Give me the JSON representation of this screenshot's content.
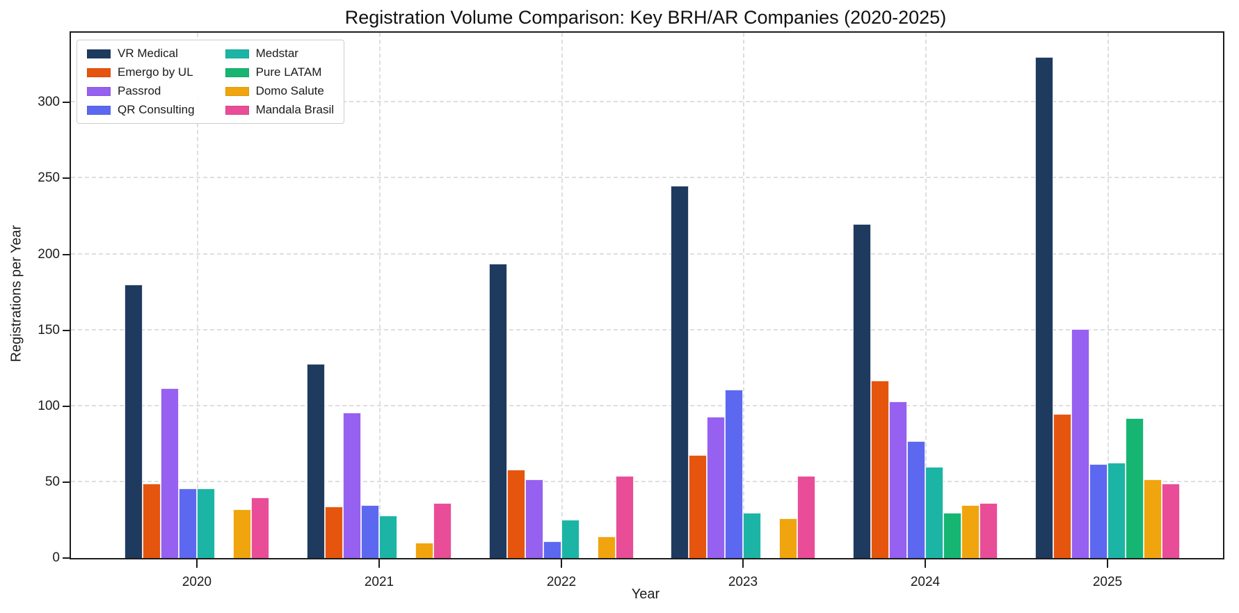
{
  "chart_data": {
    "type": "bar",
    "title": "Registration Volume Comparison: Key BRH/AR Companies (2020-2025)",
    "xlabel": "Year",
    "ylabel": "Registrations per Year",
    "categories": [
      "2020",
      "2021",
      "2022",
      "2023",
      "2024",
      "2025"
    ],
    "y_ticks": [
      0,
      50,
      100,
      150,
      200,
      250,
      300
    ],
    "ylim": [
      0,
      346
    ],
    "grid": "dashed-both-axes",
    "legend_position": "upper-left",
    "legend_columns": 2,
    "series": [
      {
        "name": "VR Medical",
        "color": "#1f3a5f",
        "values": [
          180,
          128,
          194,
          245,
          220,
          330
        ]
      },
      {
        "name": "Emergo by UL",
        "color": "#e6550d",
        "values": [
          49,
          34,
          58,
          68,
          117,
          95
        ]
      },
      {
        "name": "Passrod",
        "color": "#9660f0",
        "values": [
          112,
          96,
          52,
          93,
          103,
          151
        ]
      },
      {
        "name": "QR Consulting",
        "color": "#5d68f0",
        "values": [
          46,
          35,
          11,
          111,
          77,
          62
        ]
      },
      {
        "name": "Medstar",
        "color": "#1cb5a5",
        "values": [
          46,
          28,
          25,
          30,
          60,
          63
        ]
      },
      {
        "name": "Pure LATAM",
        "color": "#17b572",
        "values": [
          0,
          0,
          0,
          0,
          30,
          92
        ]
      },
      {
        "name": "Domo Salute",
        "color": "#f0a50e",
        "values": [
          32,
          10,
          14,
          26,
          35,
          52
        ]
      },
      {
        "name": "Mandala Brasil",
        "color": "#e94d97",
        "values": [
          40,
          36,
          54,
          54,
          36,
          49
        ]
      }
    ],
    "colors": {
      "grid": "#dedede",
      "axis": "#1c1c1c",
      "background": "#ffffff"
    }
  }
}
